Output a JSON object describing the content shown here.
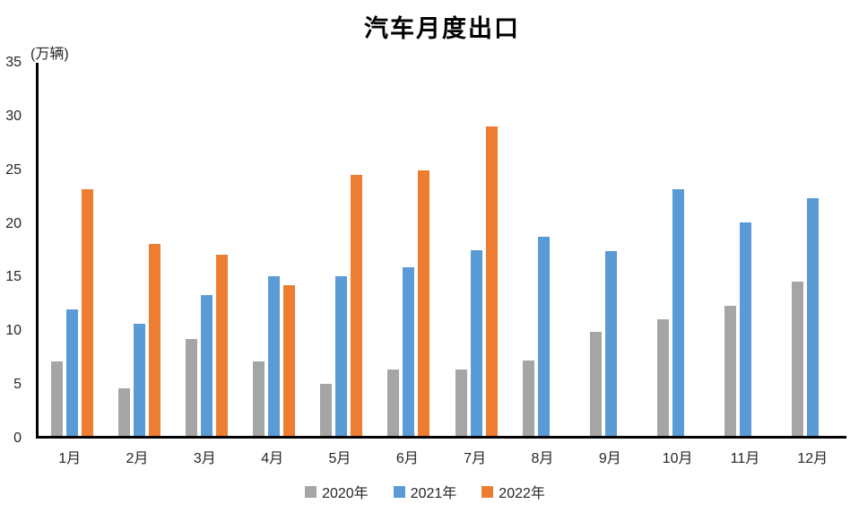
{
  "title": "汽车月度出口",
  "unit_label": "(万辆)",
  "chart_data": {
    "type": "bar",
    "title": "汽车月度出口",
    "ylabel": "(万辆)",
    "categories": [
      "1月",
      "2月",
      "3月",
      "4月",
      "5月",
      "6月",
      "7月",
      "8月",
      "9月",
      "10月",
      "11月",
      "12月"
    ],
    "series": [
      {
        "name": "2020年",
        "color": "#A5A5A5",
        "values": [
          7.0,
          4.5,
          9.1,
          7.0,
          4.9,
          6.2,
          6.2,
          7.1,
          9.8,
          10.9,
          12.2,
          14.5
        ]
      },
      {
        "name": "2021年",
        "color": "#5B9BD5",
        "values": [
          11.9,
          10.5,
          13.2,
          15.0,
          15.0,
          15.8,
          17.4,
          18.7,
          17.3,
          23.1,
          20.0,
          22.3
        ]
      },
      {
        "name": "2022年",
        "color": "#ED7D31",
        "values": [
          23.1,
          18.0,
          17.0,
          14.1,
          24.5,
          24.9,
          29.0,
          null,
          null,
          null,
          null,
          null
        ]
      }
    ],
    "ylim": [
      0,
      35
    ],
    "y_ticks": [
      0,
      5,
      10,
      15,
      20,
      25,
      30,
      35
    ],
    "grid": false,
    "legend_position": "bottom",
    "axis_color": "#000000",
    "background": "#ffffff"
  }
}
